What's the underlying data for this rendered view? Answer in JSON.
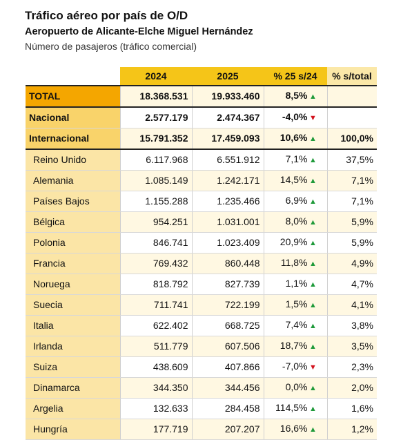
{
  "header": {
    "title": "Tráfico aéreo por país de O/D",
    "subtitle": "Aeropuerto de Alicante-Elche Miguel Hernández",
    "note": "Número de pasajeros (tráfico comercial)"
  },
  "columns": [
    "2024",
    "2025",
    "% 25 s/24",
    "% s/total"
  ],
  "icons": {
    "up": "triangle-up-icon",
    "down": "triangle-down-icon"
  },
  "colors": {
    "up": "#1f9a3a",
    "down": "#d3121d",
    "accent": "#f5c518"
  },
  "chart_data": {
    "type": "table",
    "title": "Tráfico aéreo por país de O/D",
    "subtitle": "Aeropuerto de Alicante-Elche Miguel Hernández",
    "columns": [
      "2024",
      "2025",
      "% 25 s/24",
      "% s/total"
    ],
    "rows": [
      {
        "label": "TOTAL",
        "y2024": "18.368.531",
        "y2025": "19.933.460",
        "change": "8,5%",
        "trend": "up",
        "share": ""
      },
      {
        "label": "Nacional",
        "y2024": "2.577.179",
        "y2025": "2.474.367",
        "change": "-4,0%",
        "trend": "down",
        "share": ""
      },
      {
        "label": "Internacional",
        "y2024": "15.791.352",
        "y2025": "17.459.093",
        "change": "10,6%",
        "trend": "up",
        "share": "100,0%"
      },
      {
        "label": "Reino Unido",
        "y2024": "6.117.968",
        "y2025": "6.551.912",
        "change": "7,1%",
        "trend": "up",
        "share": "37,5%"
      },
      {
        "label": "Alemania",
        "y2024": "1.085.149",
        "y2025": "1.242.171",
        "change": "14,5%",
        "trend": "up",
        "share": "7,1%"
      },
      {
        "label": "Países Bajos",
        "y2024": "1.155.288",
        "y2025": "1.235.466",
        "change": "6,9%",
        "trend": "up",
        "share": "7,1%"
      },
      {
        "label": "Bélgica",
        "y2024": "954.251",
        "y2025": "1.031.001",
        "change": "8,0%",
        "trend": "up",
        "share": "5,9%"
      },
      {
        "label": "Polonia",
        "y2024": "846.741",
        "y2025": "1.023.409",
        "change": "20,9%",
        "trend": "up",
        "share": "5,9%"
      },
      {
        "label": "Francia",
        "y2024": "769.432",
        "y2025": "860.448",
        "change": "11,8%",
        "trend": "up",
        "share": "4,9%"
      },
      {
        "label": "Noruega",
        "y2024": "818.792",
        "y2025": "827.739",
        "change": "1,1%",
        "trend": "up",
        "share": "4,7%"
      },
      {
        "label": "Suecia",
        "y2024": "711.741",
        "y2025": "722.199",
        "change": "1,5%",
        "trend": "up",
        "share": "4,1%"
      },
      {
        "label": "Italia",
        "y2024": "622.402",
        "y2025": "668.725",
        "change": "7,4%",
        "trend": "up",
        "share": "3,8%"
      },
      {
        "label": "Irlanda",
        "y2024": "511.779",
        "y2025": "607.506",
        "change": "18,7%",
        "trend": "up",
        "share": "3,5%"
      },
      {
        "label": "Suiza",
        "y2024": "438.609",
        "y2025": "407.866",
        "change": "-7,0%",
        "trend": "down",
        "share": "2,3%"
      },
      {
        "label": "Dinamarca",
        "y2024": "344.350",
        "y2025": "344.456",
        "change": "0,0%",
        "trend": "up",
        "share": "2,0%"
      },
      {
        "label": "Argelia",
        "y2024": "132.633",
        "y2025": "284.458",
        "change": "114,5%",
        "trend": "up",
        "share": "1,6%"
      },
      {
        "label": "Hungría",
        "y2024": "177.719",
        "y2025": "207.207",
        "change": "16,6%",
        "trend": "up",
        "share": "1,2%"
      }
    ]
  }
}
